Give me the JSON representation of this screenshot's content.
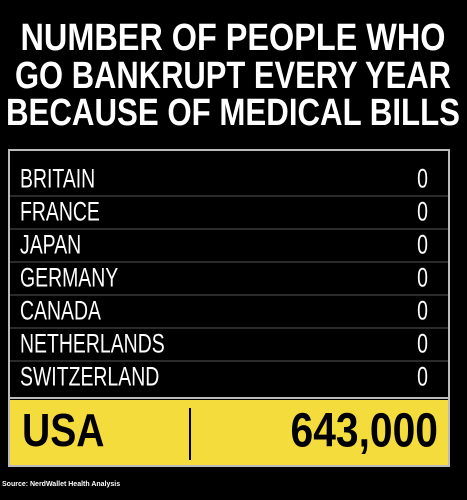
{
  "header": {
    "title_lines": [
      "NUMBER OF PEOPLE WHO",
      "GO BANKRUPT EVERY YEAR",
      "BECAUSE OF MEDICAL BILLS"
    ]
  },
  "table": {
    "rows": [
      [
        "BRITAIN",
        "0"
      ],
      [
        "FRANCE",
        "0"
      ],
      [
        "JAPAN",
        "0"
      ],
      [
        "GERMANY",
        "0"
      ],
      [
        "CANADA",
        "0"
      ],
      [
        "NETHERLANDS",
        "0"
      ],
      [
        "SWITZERLAND",
        "0"
      ]
    ],
    "highlight": [
      "USA",
      "643,000"
    ]
  },
  "footer": {
    "source": "Source: NerdWallet Health Analysis"
  }
}
